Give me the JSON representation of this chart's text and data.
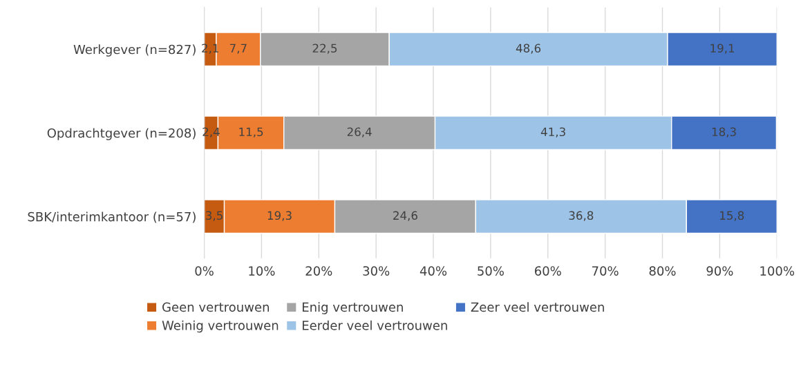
{
  "chart_data": {
    "type": "bar",
    "orientation": "horizontal",
    "stacked": true,
    "categories": [
      "Werkgever (n=827)",
      "Opdrachtgever (n=208)",
      "SBK/interimkantoor (n=57)"
    ],
    "series": [
      {
        "name": "Geen vertrouwen",
        "color": "#c55a11",
        "values": [
          2.1,
          2.4,
          3.5
        ],
        "value_labels": [
          "2,1",
          "2,4",
          "3,5"
        ]
      },
      {
        "name": "Weinig vertrouwen",
        "color": "#ed7d31",
        "values": [
          7.7,
          11.5,
          19.3
        ],
        "value_labels": [
          "7,7",
          "11,5",
          "19,3"
        ]
      },
      {
        "name": "Enig vertrouwen",
        "color": "#a5a5a5",
        "values": [
          22.5,
          26.4,
          24.6
        ],
        "value_labels": [
          "22,5",
          "26,4",
          "24,6"
        ]
      },
      {
        "name": "Eerder veel vertrouwen",
        "color": "#9dc3e6",
        "values": [
          48.6,
          41.3,
          36.8
        ],
        "value_labels": [
          "48,6",
          "41,3",
          "36,8"
        ]
      },
      {
        "name": "Zeer veel vertrouwen",
        "color": "#4472c4",
        "values": [
          19.1,
          18.3,
          15.8
        ],
        "value_labels": [
          "19,1",
          "18,3",
          "15,8"
        ]
      }
    ],
    "xlim": [
      0,
      100
    ],
    "xticks": [
      {
        "value": 0,
        "label": "0%"
      },
      {
        "value": 10,
        "label": "10%"
      },
      {
        "value": 20,
        "label": "20%"
      },
      {
        "value": 30,
        "label": "30%"
      },
      {
        "value": 40,
        "label": "40%"
      },
      {
        "value": 50,
        "label": "50%"
      },
      {
        "value": 60,
        "label": "60%"
      },
      {
        "value": 70,
        "label": "70%"
      },
      {
        "value": 80,
        "label": "80%"
      },
      {
        "value": 90,
        "label": "90%"
      },
      {
        "value": 100,
        "label": "100%"
      }
    ],
    "grid": "x",
    "legend": "bottom"
  }
}
